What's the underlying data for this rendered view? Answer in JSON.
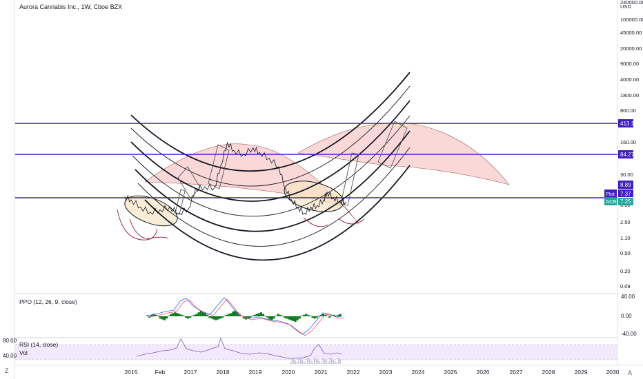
{
  "header": {
    "title": "Aurora Cannabis Inc., 1W, Cboe BZX"
  },
  "currency": "USD",
  "colors": {
    "h_line": "#3f1fbf",
    "ppo_hist": "#0f7a1f",
    "ppo_line": "#2962ff",
    "ppo_signal": "#ff5252",
    "rsi_band": "#ede0fb",
    "rsi_line": "#7e57c2",
    "arc_fill": "#f7b8b8",
    "ellipse_fill": "#f8e5c4",
    "cup_stroke": "#9c1a3b",
    "price_line": "#131722"
  },
  "price_scale": {
    "labels": [
      "240000.00",
      "100000.00",
      "45000.00",
      "20000.00",
      "9000.00",
      "4000.00",
      "1800.00",
      "800.00",
      "160.00",
      "30.00",
      "6.00",
      "2.50",
      "1.10",
      "0.50",
      "0.20",
      "0.09"
    ]
  },
  "badges": {
    "h1": "413.15",
    "h2": "84.27",
    "h3": "8.89",
    "plot_tag": "Plot",
    "plot_val": "7.37",
    "sym": "ACB",
    "sym_val": "7.25"
  },
  "time_axis": {
    "labels": [
      "2015",
      "Feb",
      "2017",
      "2018",
      "2019",
      "2020",
      "2021",
      "2022",
      "2023",
      "2024",
      "2025",
      "2026",
      "2027",
      "2028",
      "2029",
      "2030"
    ]
  },
  "ppo": {
    "label": "PPO (12, 26, 9, close)",
    "scale": [
      "40.00",
      "0.00",
      "-40.00"
    ]
  },
  "rsi": {
    "label": "RSI (14, close)",
    "vol_label": "Vol",
    "scale_left": [
      "80.00",
      "40.00"
    ]
  },
  "corner": {
    "z": "Z",
    "a": "A"
  },
  "chart_data": {
    "type": "line",
    "scale": "log",
    "title": "Aurora Cannabis Inc., 1W, Cboe BZX",
    "x_range": [
      "2014-12",
      "2030-01"
    ],
    "y_range": [
      0.09,
      240000
    ],
    "horizontal_levels": [
      413.15,
      84.27,
      8.89
    ],
    "series": [
      {
        "x": [
          2014.8,
          2015.0,
          2015.3,
          2015.6,
          2015.9,
          2016.2,
          2016.5,
          2016.8,
          2017.0,
          2017.3,
          2017.6,
          2017.8,
          2018.0,
          2018.2,
          2018.5,
          2018.8,
          2019.0,
          2019.3,
          2019.6,
          2019.8,
          2020.0,
          2020.2,
          2020.4,
          2020.6,
          2020.8,
          2021.0,
          2021.1,
          2021.3,
          2021.5,
          2021.7
        ],
        "y": [
          9.5,
          8.0,
          5.5,
          4.2,
          4.8,
          5.5,
          4.0,
          5.2,
          14,
          16,
          15,
          50,
          160,
          105,
          85,
          120,
          95,
          70,
          45,
          15,
          8,
          5.5,
          4.0,
          5.5,
          6.0,
          8.0,
          12,
          9,
          7.5,
          7.25
        ]
      }
    ]
  }
}
